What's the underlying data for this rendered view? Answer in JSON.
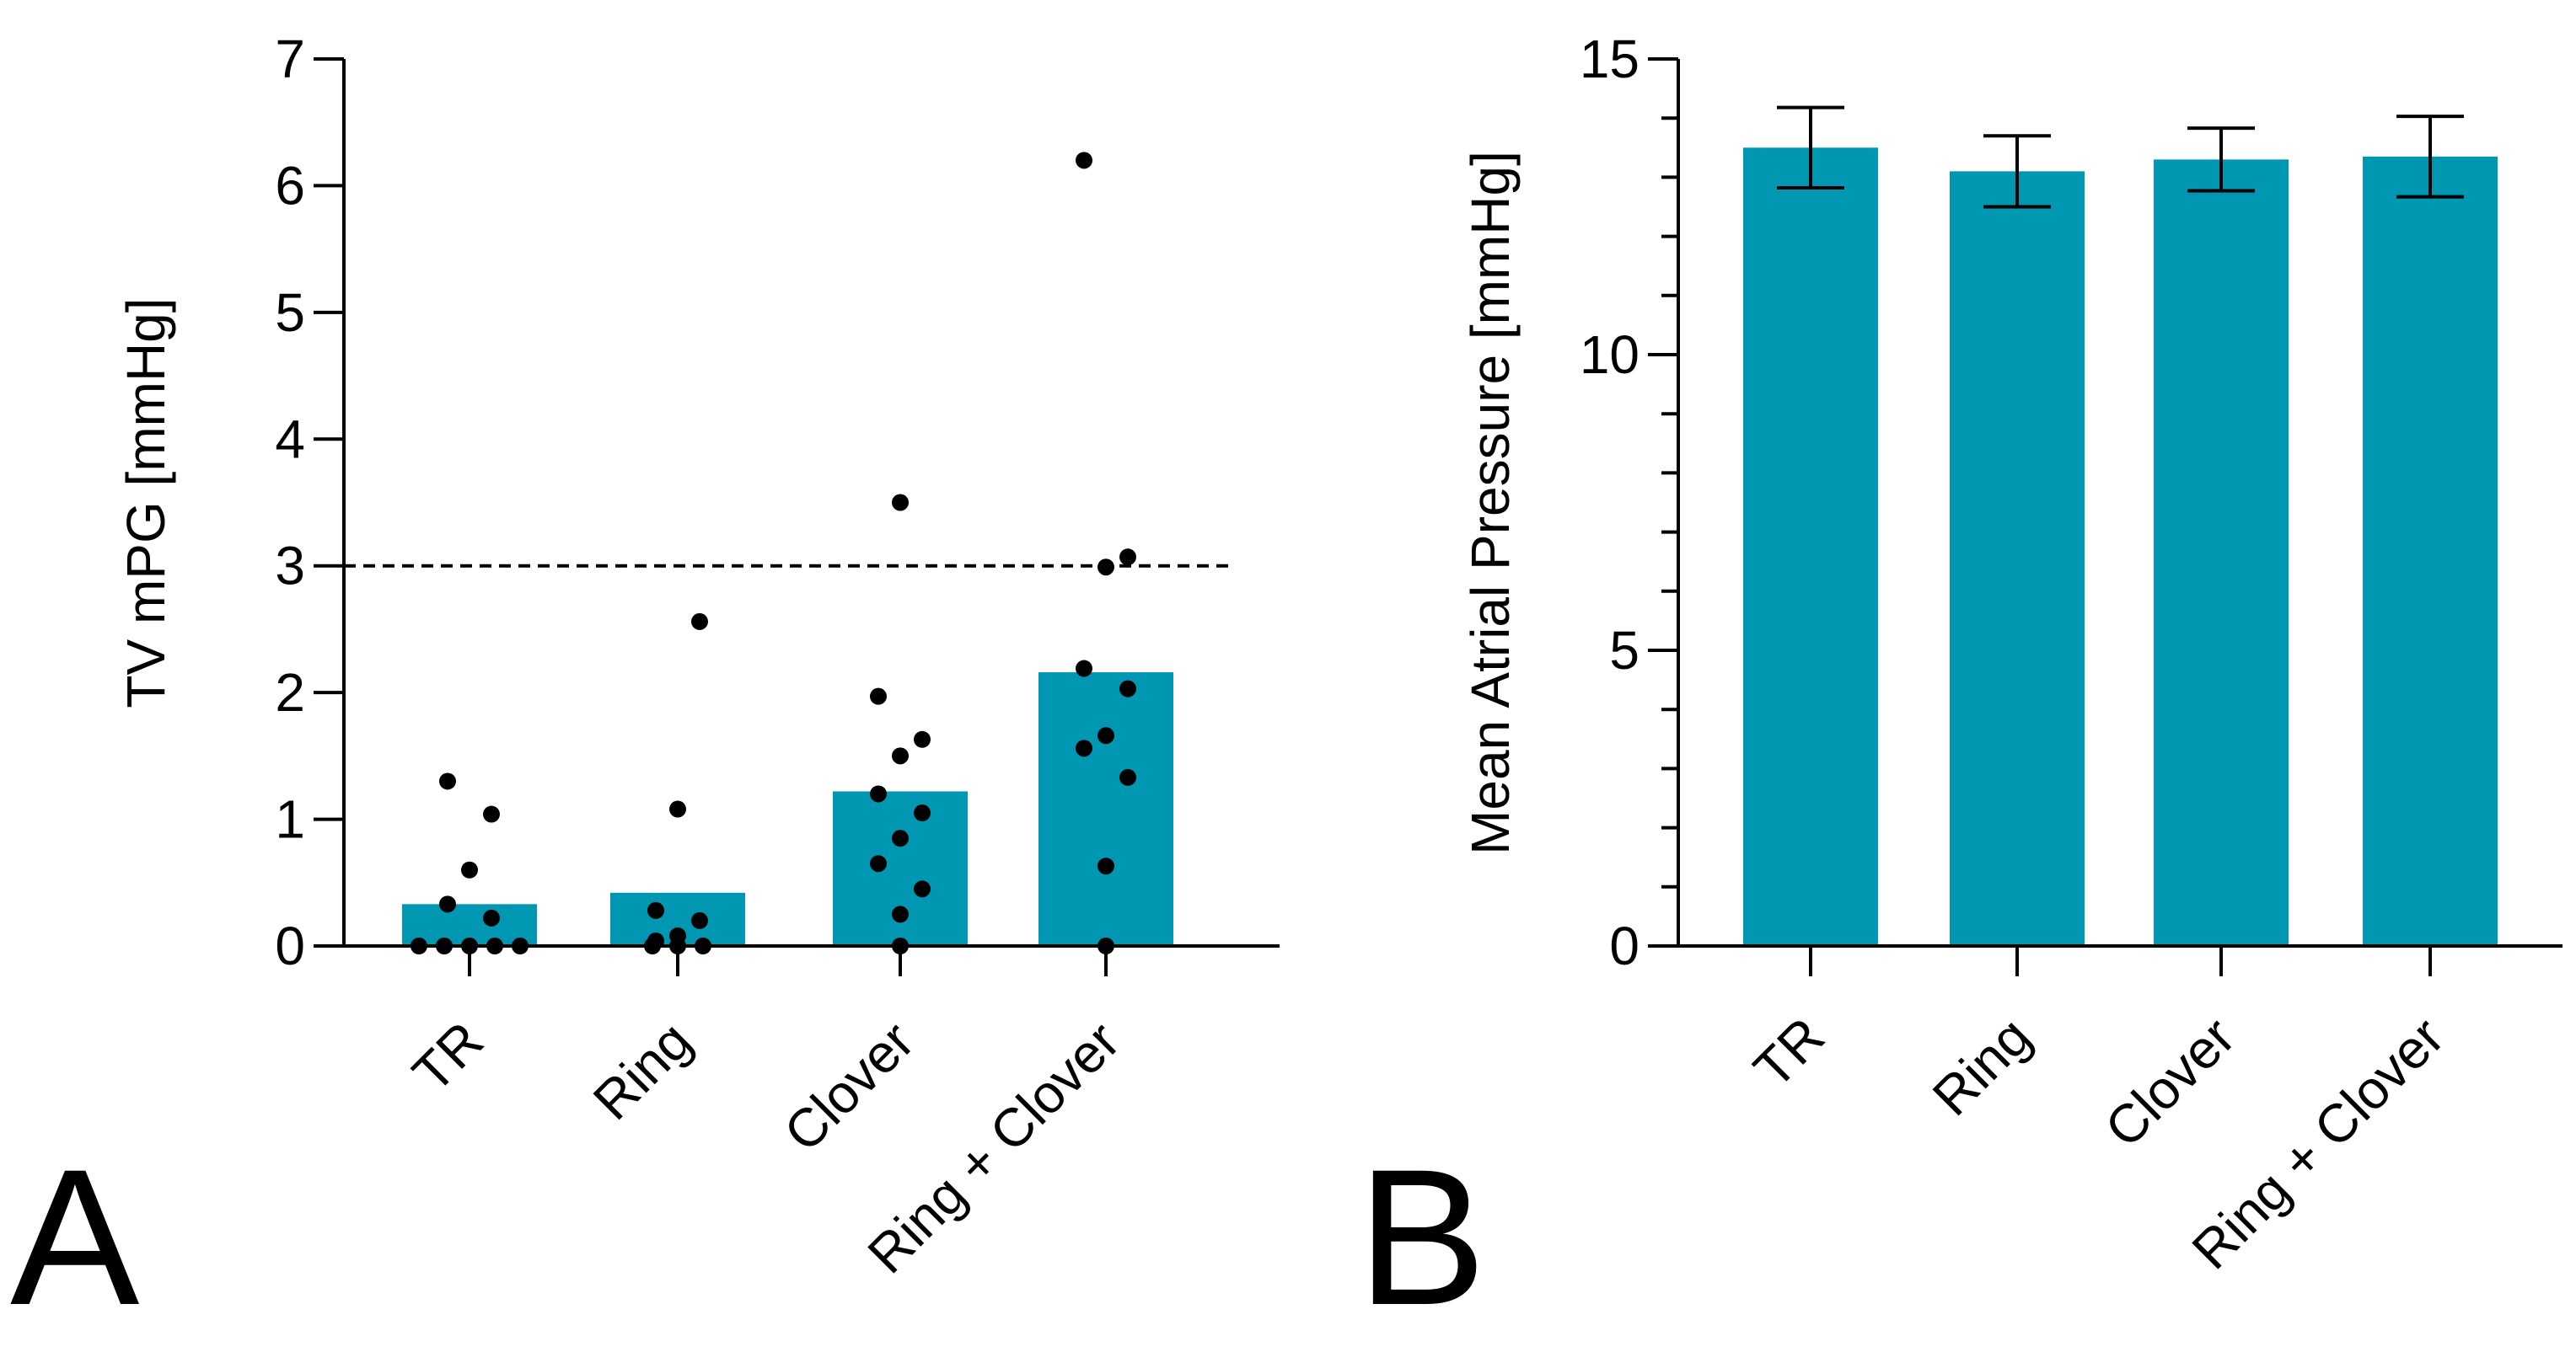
{
  "colors": {
    "bar": "#0097b2",
    "axis": "#000000",
    "point": "#000000"
  },
  "chart_data": [
    {
      "panel": "A",
      "type": "bar",
      "ylabel": "TV mPG [mmHg]",
      "xlabel": "",
      "categories": [
        "TR",
        "Ring",
        "Clover",
        "Ring + Clover"
      ],
      "values": [
        0.33,
        0.42,
        1.22,
        2.16
      ],
      "ylim": [
        0,
        7
      ],
      "yticks": [
        "0",
        "1",
        "2",
        "3",
        "4",
        "5",
        "6",
        "7"
      ],
      "reference_line": {
        "y": 3,
        "style": "dashed"
      },
      "points": [
        [
          0,
          0,
          0,
          0,
          0,
          0.22,
          0.33,
          0.6,
          1.04,
          1.3
        ],
        [
          0,
          0,
          0,
          0.04,
          0.08,
          0.2,
          0.28,
          1.08,
          2.56
        ],
        [
          0,
          0.25,
          0.45,
          0.65,
          0.85,
          1.05,
          1.2,
          1.5,
          1.63,
          1.97,
          3.5
        ],
        [
          0,
          0.63,
          1.33,
          1.56,
          1.66,
          2.03,
          2.19,
          2.99,
          3.07,
          6.2
        ]
      ],
      "grid": false
    },
    {
      "panel": "B",
      "type": "bar",
      "ylabel": "Mean Atrial Pressure [mmHg]",
      "xlabel": "",
      "categories": [
        "TR",
        "Ring",
        "Clover",
        "Ring + Clover"
      ],
      "values": [
        13.5,
        13.1,
        13.3,
        13.35
      ],
      "error": [
        0.68,
        0.6,
        0.53,
        0.68
      ],
      "ylim": [
        0,
        15
      ],
      "yticks": [
        "0",
        "5",
        "10",
        "15"
      ],
      "minor_tick_step": 1,
      "grid": false
    }
  ]
}
